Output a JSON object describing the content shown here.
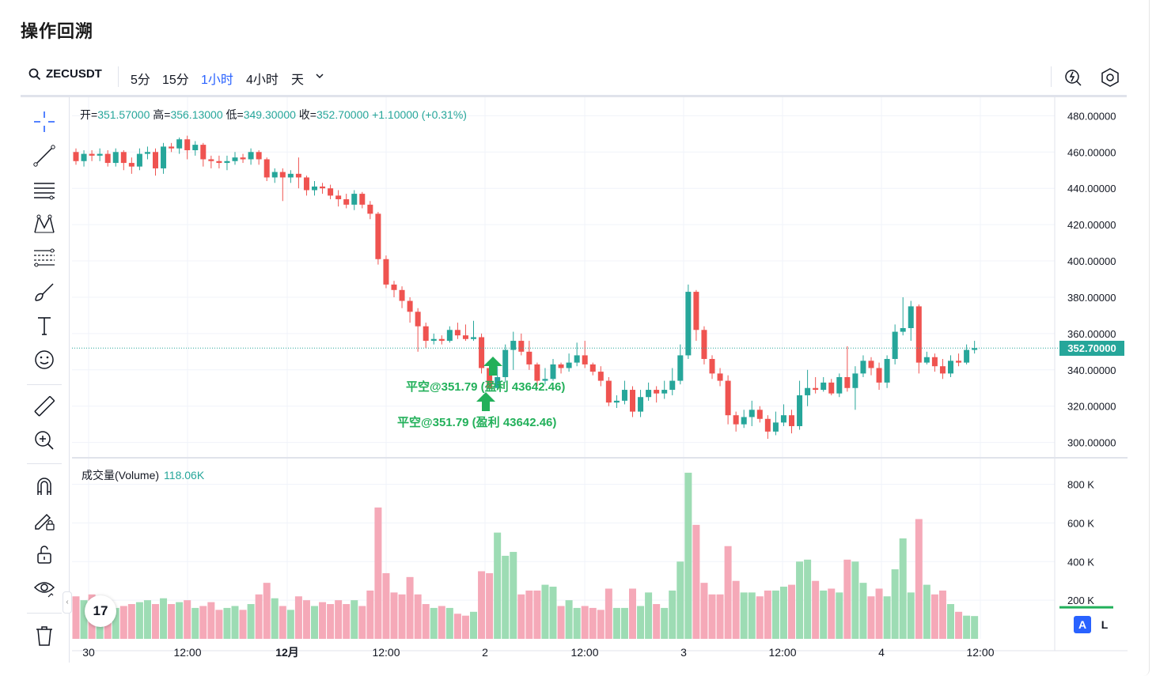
{
  "page_title": "操作回溯",
  "toolbar": {
    "symbol": "ZECUSDT",
    "intervals": [
      "5分",
      "15分",
      "1小时",
      "4小时",
      "天"
    ],
    "active_interval": "1小时"
  },
  "legend": {
    "open_label": "开=",
    "open": "351.57000",
    "high_label": "高=",
    "high": "356.13000",
    "low_label": "低=",
    "low": "349.30000",
    "close_label": "收=",
    "close": "352.70000",
    "change": "+1.10000 (+0.31%)"
  },
  "volume_legend": {
    "label": "成交量(Volume)",
    "value": "118.06K"
  },
  "price_axis": [
    "480.00000",
    "460.00000",
    "440.00000",
    "420.00000",
    "400.00000",
    "380.00000",
    "360.00000",
    "340.00000",
    "320.00000",
    "300.00000"
  ],
  "volume_axis": [
    "800 K",
    "600 K",
    "400 K",
    "200 K"
  ],
  "time_axis": [
    "30",
    "12:00",
    "12月",
    "12:00",
    "2",
    "12:00",
    "3",
    "12:00",
    "4",
    "12:00"
  ],
  "current_price_tag": "352.70000",
  "trade_markers": {
    "label_upper": "平空@351.79 (盈利 43642.46)",
    "label_lower": "平空@351.79 (盈利 43642.46)"
  },
  "axis_buttons": {
    "auto": "A",
    "log": "L"
  },
  "logo_text": "17",
  "colors": {
    "up": "#26a69a",
    "down": "#ef5350",
    "up_vol": "#9ddcb4",
    "down_vol": "#f5a9b8",
    "accent": "#2962ff",
    "marker": "#22b05a"
  },
  "chart_data": {
    "type": "candlestick",
    "timeframe": "1小时",
    "ylim": [
      292,
      488
    ],
    "volume_ylim": [
      0,
      880
    ],
    "volume_unit": "K",
    "candles": [
      [
        460,
        455,
        462,
        453,
        220
      ],
      [
        455,
        459,
        461,
        452,
        200
      ],
      [
        459,
        458,
        461,
        455,
        230
      ],
      [
        458,
        459,
        462,
        455,
        210
      ],
      [
        459,
        454,
        461,
        452,
        180
      ],
      [
        454,
        460,
        462,
        452,
        160
      ],
      [
        460,
        454,
        461,
        450,
        170
      ],
      [
        454,
        452,
        457,
        448,
        180
      ],
      [
        452,
        459,
        462,
        450,
        190
      ],
      [
        459,
        460,
        463,
        456,
        200
      ],
      [
        460,
        451,
        462,
        447,
        180
      ],
      [
        451,
        463,
        465,
        448,
        210
      ],
      [
        463,
        462,
        465,
        460,
        180
      ],
      [
        462,
        467,
        468,
        459,
        190
      ],
      [
        467,
        461,
        469,
        456,
        200
      ],
      [
        461,
        464,
        466,
        458,
        160
      ],
      [
        464,
        456,
        465,
        452,
        170
      ],
      [
        456,
        455,
        458,
        451,
        190
      ],
      [
        455,
        454,
        458,
        451,
        150
      ],
      [
        454,
        455,
        458,
        450,
        160
      ],
      [
        455,
        457,
        460,
        453,
        170
      ],
      [
        457,
        456,
        459,
        454,
        150
      ],
      [
        456,
        460,
        462,
        453,
        180
      ],
      [
        460,
        456,
        461,
        453,
        230
      ],
      [
        456,
        446,
        457,
        444,
        290
      ],
      [
        446,
        449,
        451,
        443,
        210
      ],
      [
        449,
        446,
        451,
        433,
        170
      ],
      [
        446,
        448,
        450,
        443,
        150
      ],
      [
        448,
        446,
        457,
        440,
        220
      ],
      [
        446,
        439,
        447,
        436,
        200
      ],
      [
        439,
        441,
        444,
        436,
        170
      ],
      [
        441,
        440,
        443,
        437,
        190
      ],
      [
        440,
        436,
        442,
        434,
        180
      ],
      [
        436,
        434,
        439,
        430,
        200
      ],
      [
        434,
        431,
        437,
        429,
        180
      ],
      [
        431,
        437,
        439,
        428,
        200
      ],
      [
        437,
        431,
        438,
        429,
        170
      ],
      [
        431,
        426,
        433,
        423,
        250
      ],
      [
        426,
        401,
        427,
        398,
        680
      ],
      [
        401,
        387,
        403,
        385,
        340
      ],
      [
        387,
        384,
        389,
        380,
        240
      ],
      [
        384,
        378,
        386,
        374,
        230
      ],
      [
        378,
        372,
        380,
        366,
        320
      ],
      [
        372,
        364,
        374,
        350,
        230
      ],
      [
        364,
        356,
        366,
        352,
        180
      ],
      [
        356,
        357,
        360,
        354,
        160
      ],
      [
        357,
        356,
        359,
        354,
        170
      ],
      [
        356,
        362,
        364,
        355,
        160
      ],
      [
        362,
        359,
        366,
        357,
        130
      ],
      [
        359,
        357,
        365,
        356,
        120
      ],
      [
        357,
        358,
        367,
        356,
        140
      ],
      [
        358,
        341,
        360,
        338,
        350
      ],
      [
        341,
        330,
        344,
        328,
        340
      ],
      [
        330,
        336,
        342,
        329,
        550
      ],
      [
        336,
        351,
        354,
        333,
        430
      ],
      [
        351,
        356,
        361,
        340,
        450
      ],
      [
        356,
        350,
        360,
        348,
        230
      ],
      [
        350,
        343,
        356,
        340,
        250
      ],
      [
        343,
        334,
        344,
        331,
        250
      ],
      [
        334,
        335,
        341,
        332,
        280
      ],
      [
        335,
        343,
        346,
        334,
        270
      ],
      [
        343,
        341,
        344,
        338,
        170
      ],
      [
        341,
        344,
        349,
        339,
        200
      ],
      [
        344,
        348,
        355,
        342,
        160
      ],
      [
        348,
        343,
        356,
        341,
        170
      ],
      [
        343,
        339,
        344,
        337,
        160
      ],
      [
        339,
        334,
        342,
        331,
        150
      ],
      [
        334,
        322,
        336,
        320,
        260
      ],
      [
        322,
        323,
        326,
        319,
        160
      ],
      [
        323,
        329,
        334,
        321,
        160
      ],
      [
        329,
        317,
        331,
        314,
        260
      ],
      [
        317,
        325,
        329,
        314,
        170
      ],
      [
        325,
        329,
        333,
        323,
        240
      ],
      [
        329,
        327,
        331,
        322,
        180
      ],
      [
        327,
        329,
        334,
        324,
        160
      ],
      [
        329,
        334,
        341,
        326,
        250
      ],
      [
        334,
        348,
        354,
        332,
        400
      ],
      [
        348,
        383,
        387,
        346,
        860
      ],
      [
        383,
        362,
        384,
        356,
        590
      ],
      [
        362,
        346,
        364,
        343,
        290
      ],
      [
        346,
        338,
        348,
        335,
        230
      ],
      [
        338,
        334,
        341,
        331,
        230
      ],
      [
        334,
        315,
        337,
        310,
        480
      ],
      [
        315,
        310,
        317,
        306,
        300
      ],
      [
        310,
        314,
        318,
        308,
        240
      ],
      [
        314,
        318,
        323,
        309,
        240
      ],
      [
        318,
        313,
        320,
        311,
        220
      ],
      [
        313,
        306,
        315,
        302,
        250
      ],
      [
        306,
        311,
        317,
        304,
        250
      ],
      [
        311,
        315,
        321,
        309,
        270
      ],
      [
        315,
        309,
        318,
        305,
        280
      ],
      [
        309,
        326,
        334,
        307,
        400
      ],
      [
        326,
        330,
        340,
        320,
        410
      ],
      [
        330,
        329,
        336,
        327,
        300
      ],
      [
        329,
        333,
        336,
        328,
        250
      ],
      [
        333,
        327,
        335,
        326,
        260
      ],
      [
        327,
        336,
        338,
        325,
        240
      ],
      [
        336,
        330,
        353,
        328,
        410
      ],
      [
        330,
        338,
        342,
        318,
        400
      ],
      [
        338,
        345,
        348,
        336,
        290
      ],
      [
        345,
        341,
        347,
        337,
        220
      ],
      [
        341,
        333,
        344,
        329,
        260
      ],
      [
        333,
        346,
        348,
        330,
        220
      ],
      [
        346,
        361,
        365,
        343,
        360
      ],
      [
        361,
        363,
        380,
        359,
        520
      ],
      [
        363,
        375,
        378,
        356,
        240
      ],
      [
        375,
        344,
        376,
        338,
        620
      ],
      [
        344,
        347,
        350,
        343,
        280
      ],
      [
        347,
        342,
        349,
        339,
        230
      ],
      [
        342,
        338,
        346,
        335,
        250
      ],
      [
        338,
        345,
        348,
        336,
        180
      ],
      [
        345,
        344,
        349,
        342,
        140
      ],
      [
        344,
        351,
        354,
        343,
        120
      ],
      [
        351,
        352,
        356,
        349,
        118
      ]
    ]
  }
}
